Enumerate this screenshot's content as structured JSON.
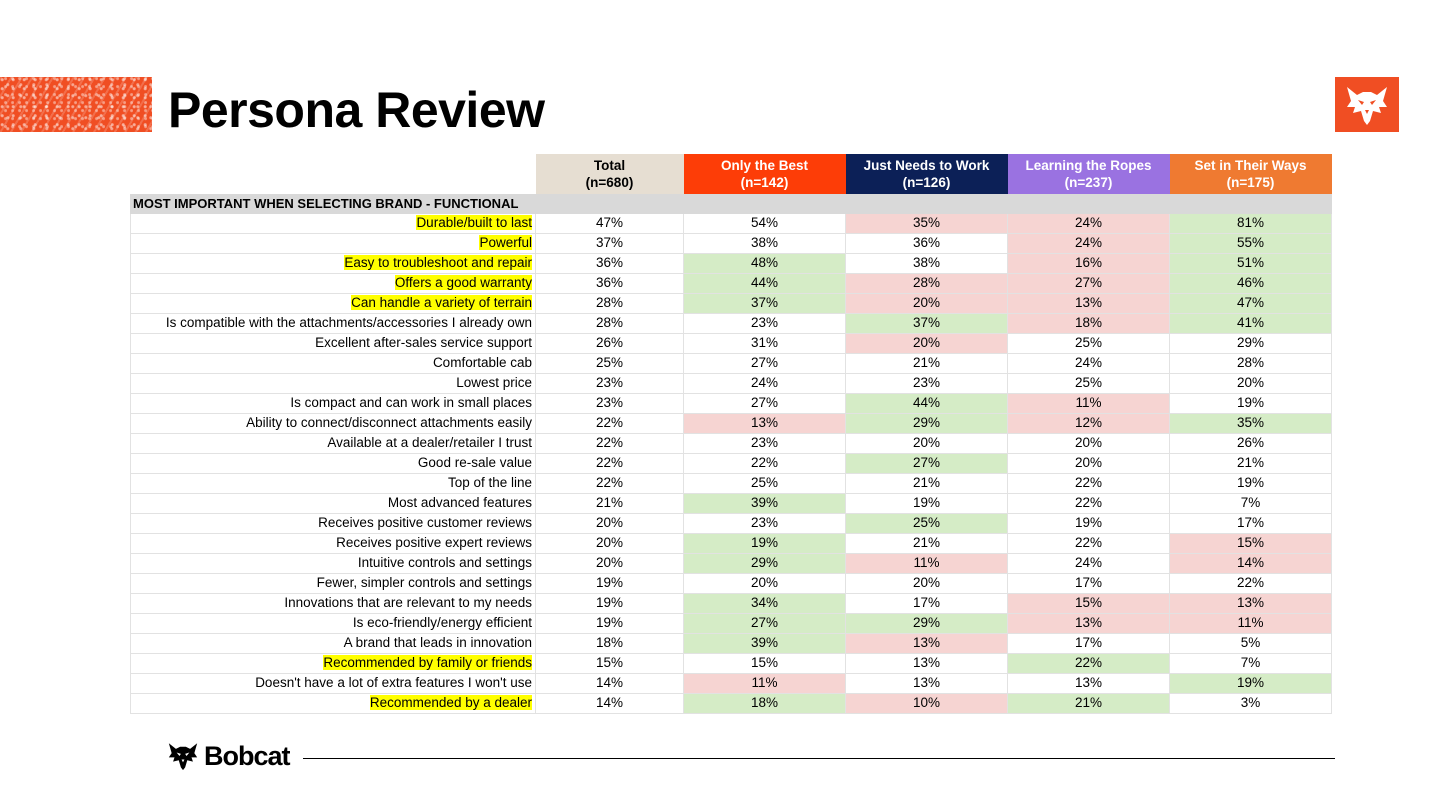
{
  "title": "Persona Review",
  "brand": {
    "wordmark": "Bobcat",
    "trademark": ".",
    "accent": "#f04e23",
    "logo_icon": "bobcat-head-icon"
  },
  "table": {
    "columns": [
      {
        "key": "total",
        "name": "Total",
        "n": "(n=680)",
        "color": "#e6ded2"
      },
      {
        "key": "only_the_best",
        "name": "Only the Best",
        "n": "(n=142)",
        "color": "#fd3d07"
      },
      {
        "key": "just_needs_to_work",
        "name": "Just Needs to Work",
        "n": "(n=126)",
        "color": "#0c2057"
      },
      {
        "key": "learning_the_ropes",
        "name": "Learning the Ropes",
        "n": "(n=237)",
        "color": "#9a72e1"
      },
      {
        "key": "set_in_their_ways",
        "name": "Set in Their Ways",
        "n": "(n=175)",
        "color": "#ef7a31"
      }
    ],
    "section": "MOST IMPORTANT WHEN SELECTING BRAND - FUNCTIONAL",
    "shading_colors": {
      "green": "#d5ecc6",
      "red": "#f6d4d2",
      "highlight": "#ffff00"
    },
    "rows": [
      {
        "label": "Durable/built to last",
        "highlight": true,
        "values": [
          "47%",
          "54%",
          "35%",
          "24%",
          "81%"
        ],
        "shade": [
          "",
          "",
          "r",
          "r",
          "g"
        ]
      },
      {
        "label": "Powerful",
        "highlight": true,
        "values": [
          "37%",
          "38%",
          "36%",
          "24%",
          "55%"
        ],
        "shade": [
          "",
          "",
          "",
          "r",
          "g"
        ]
      },
      {
        "label": "Easy to troubleshoot and repair",
        "highlight": true,
        "values": [
          "36%",
          "48%",
          "38%",
          "16%",
          "51%"
        ],
        "shade": [
          "",
          "g",
          "",
          "r",
          "g"
        ]
      },
      {
        "label": "Offers a good warranty",
        "highlight": true,
        "values": [
          "36%",
          "44%",
          "28%",
          "27%",
          "46%"
        ],
        "shade": [
          "",
          "g",
          "r",
          "r",
          "g"
        ]
      },
      {
        "label": "Can handle a variety of terrain",
        "highlight": true,
        "values": [
          "28%",
          "37%",
          "20%",
          "13%",
          "47%"
        ],
        "shade": [
          "",
          "g",
          "r",
          "r",
          "g"
        ]
      },
      {
        "label": "Is compatible with the attachments/accessories I already own",
        "highlight": false,
        "values": [
          "28%",
          "23%",
          "37%",
          "18%",
          "41%"
        ],
        "shade": [
          "",
          "",
          "g",
          "r",
          "g"
        ]
      },
      {
        "label": "Excellent after-sales service support",
        "highlight": false,
        "values": [
          "26%",
          "31%",
          "20%",
          "25%",
          "29%"
        ],
        "shade": [
          "",
          "",
          "r",
          "",
          ""
        ]
      },
      {
        "label": "Comfortable cab",
        "highlight": false,
        "values": [
          "25%",
          "27%",
          "21%",
          "24%",
          "28%"
        ],
        "shade": [
          "",
          "",
          "",
          "",
          ""
        ]
      },
      {
        "label": "Lowest price",
        "highlight": false,
        "values": [
          "23%",
          "24%",
          "23%",
          "25%",
          "20%"
        ],
        "shade": [
          "",
          "",
          "",
          "",
          ""
        ]
      },
      {
        "label": "Is compact and can work in small places",
        "highlight": false,
        "values": [
          "23%",
          "27%",
          "44%",
          "11%",
          "19%"
        ],
        "shade": [
          "",
          "",
          "g",
          "r",
          ""
        ]
      },
      {
        "label": "Ability to connect/disconnect attachments easily",
        "highlight": false,
        "values": [
          "22%",
          "13%",
          "29%",
          "12%",
          "35%"
        ],
        "shade": [
          "",
          "r",
          "g",
          "r",
          "g"
        ]
      },
      {
        "label": "Available at a dealer/retailer I trust",
        "highlight": false,
        "values": [
          "22%",
          "23%",
          "20%",
          "20%",
          "26%"
        ],
        "shade": [
          "",
          "",
          "",
          "",
          ""
        ]
      },
      {
        "label": "Good re-sale value",
        "highlight": false,
        "values": [
          "22%",
          "22%",
          "27%",
          "20%",
          "21%"
        ],
        "shade": [
          "",
          "",
          "g",
          "",
          ""
        ]
      },
      {
        "label": "Top of the line",
        "highlight": false,
        "values": [
          "22%",
          "25%",
          "21%",
          "22%",
          "19%"
        ],
        "shade": [
          "",
          "",
          "",
          "",
          ""
        ]
      },
      {
        "label": "Most advanced features",
        "highlight": false,
        "values": [
          "21%",
          "39%",
          "19%",
          "22%",
          "7%"
        ],
        "shade": [
          "",
          "g",
          "",
          "",
          ""
        ]
      },
      {
        "label": "Receives positive customer reviews",
        "highlight": false,
        "values": [
          "20%",
          "23%",
          "25%",
          "19%",
          "17%"
        ],
        "shade": [
          "",
          "",
          "g",
          "",
          ""
        ]
      },
      {
        "label": "Receives positive expert reviews",
        "highlight": false,
        "values": [
          "20%",
          "19%",
          "21%",
          "22%",
          "15%"
        ],
        "shade": [
          "",
          "g",
          "",
          "",
          "r"
        ]
      },
      {
        "label": "Intuitive controls and settings",
        "highlight": false,
        "values": [
          "20%",
          "29%",
          "11%",
          "24%",
          "14%"
        ],
        "shade": [
          "",
          "g",
          "r",
          "",
          "r"
        ]
      },
      {
        "label": "Fewer, simpler controls and settings",
        "highlight": false,
        "values": [
          "19%",
          "20%",
          "20%",
          "17%",
          "22%"
        ],
        "shade": [
          "",
          "",
          "",
          "",
          ""
        ]
      },
      {
        "label": "Innovations that are relevant to my needs",
        "highlight": false,
        "values": [
          "19%",
          "34%",
          "17%",
          "15%",
          "13%"
        ],
        "shade": [
          "",
          "g",
          "",
          "r",
          "r"
        ]
      },
      {
        "label": "Is eco-friendly/energy efficient",
        "highlight": false,
        "values": [
          "19%",
          "27%",
          "29%",
          "13%",
          "11%"
        ],
        "shade": [
          "",
          "g",
          "g",
          "r",
          "r"
        ]
      },
      {
        "label": "A brand that leads in innovation",
        "highlight": false,
        "values": [
          "18%",
          "39%",
          "13%",
          "17%",
          "5%"
        ],
        "shade": [
          "",
          "g",
          "r",
          "",
          ""
        ]
      },
      {
        "label": "Recommended by family or friends",
        "highlight": true,
        "values": [
          "15%",
          "15%",
          "13%",
          "22%",
          "7%"
        ],
        "shade": [
          "",
          "",
          "",
          "g",
          ""
        ]
      },
      {
        "label": "Doesn't have a lot of extra features I won't use",
        "highlight": false,
        "values": [
          "14%",
          "11%",
          "13%",
          "13%",
          "19%"
        ],
        "shade": [
          "",
          "r",
          "",
          "",
          "g"
        ]
      },
      {
        "label": "Recommended by a dealer",
        "highlight": true,
        "values": [
          "14%",
          "18%",
          "10%",
          "21%",
          "3%"
        ],
        "shade": [
          "",
          "g",
          "r",
          "g",
          ""
        ]
      }
    ]
  }
}
